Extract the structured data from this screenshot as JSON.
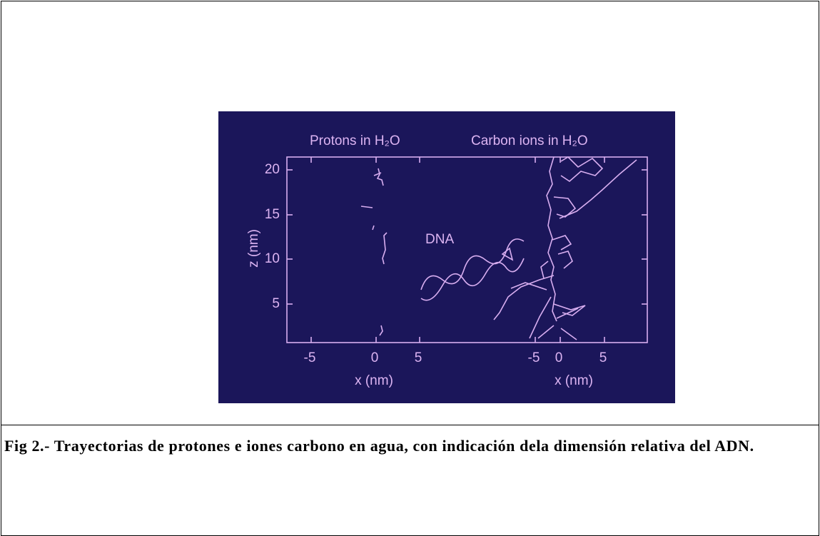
{
  "figure": {
    "left_title": "Protons in H₂O",
    "right_title": "Carbon ions in H₂O",
    "y_label": "z (nm)",
    "y_ticks": [
      20,
      15,
      10,
      5
    ],
    "left_x_ticks": [
      -5,
      0,
      5
    ],
    "right_x_ticks": [
      -5,
      0,
      5
    ],
    "left_x_label": "x (nm)",
    "right_x_label": "x (nm)",
    "dna_label": "DNA"
  },
  "caption": "Fig 2.- Trayectorias de protones e iones carbono en agua, con indicación dela dimensión relativa del ADN."
}
